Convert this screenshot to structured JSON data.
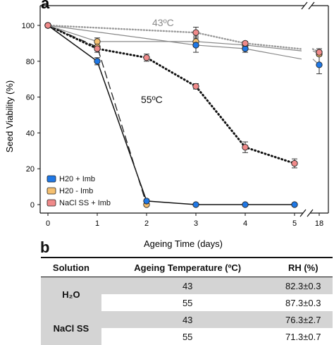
{
  "chart_data": {
    "type": "line",
    "panel_label": "a",
    "ylabel": "Seed Viability (%)",
    "xlabel": "Ageing Time (days)",
    "x_ticks": [
      "0",
      "1",
      "2",
      "3",
      "4",
      "5",
      "18"
    ],
    "y_ticks": [
      0,
      20,
      40,
      60,
      80,
      100
    ],
    "ylim": [
      0,
      105
    ],
    "axis_break": "between 5 and 18",
    "annotations": [
      "43ºC",
      "55ºC"
    ],
    "legend": {
      "placement": "bottom-left",
      "entries": [
        {
          "label": "H20 + Imb",
          "color": "#1f78e6"
        },
        {
          "label": "H20 - Imb",
          "color": "#f5c070"
        },
        {
          "label": "NaCl SS + Imb",
          "color": "#f08a8a"
        }
      ]
    },
    "series": [
      {
        "temp": "55",
        "treatment": "H20 + Imb",
        "color": "#1f78e6",
        "line": "solid",
        "x": [
          "0",
          "1",
          "2",
          "3",
          "4",
          "5"
        ],
        "y": [
          100,
          80,
          2,
          0,
          0,
          0
        ],
        "err": [
          1,
          2,
          1,
          0,
          0,
          0
        ]
      },
      {
        "temp": "55",
        "treatment": "H20 - Imb",
        "color": "#f5c070",
        "line": "dashed",
        "x": [
          "0",
          "1",
          "2"
        ],
        "y": [
          100,
          88,
          0
        ],
        "err": [
          1,
          2,
          0
        ]
      },
      {
        "temp": "55",
        "treatment": "NaCl SS + Imb",
        "color": "#f08a8a",
        "line": "dotted",
        "x": [
          "0",
          "1",
          "2",
          "3",
          "4",
          "5"
        ],
        "y": [
          100,
          87,
          82,
          66,
          32,
          23
        ],
        "err": [
          1,
          2,
          2,
          1.5,
          3,
          2.5
        ]
      },
      {
        "temp": "43",
        "treatment": "H20 + Imb",
        "color": "#1f78e6",
        "line": "solid-gray",
        "x": [
          "0",
          "3",
          "4",
          "18"
        ],
        "y": [
          100,
          89,
          87,
          78
        ],
        "err": [
          1,
          4,
          2,
          5
        ]
      },
      {
        "temp": "43",
        "treatment": "H20 - Imb",
        "color": "#f5c070",
        "line": "solid-gray",
        "x": [
          "0",
          "1",
          "3",
          "4",
          "18"
        ],
        "y": [
          100,
          91,
          91,
          89,
          84
        ],
        "err": [
          1,
          2,
          3,
          1,
          1
        ]
      },
      {
        "temp": "43",
        "treatment": "NaCl SS + Imb",
        "color": "#f08a8a",
        "line": "dotted-gray",
        "x": [
          "0",
          "3",
          "4",
          "18"
        ],
        "y": [
          100,
          96,
          90,
          85
        ],
        "err": [
          1,
          3,
          1,
          2
        ]
      }
    ]
  },
  "table": {
    "panel_label": "b",
    "headers": [
      "Solution",
      "Ageing Temperature (ºC)",
      "RH (%)"
    ],
    "rows": [
      {
        "solution": "H₂O",
        "temp": "43",
        "rh": "82.3±0.3"
      },
      {
        "solution": "",
        "temp": "55",
        "rh": "87.3±0.3"
      },
      {
        "solution": "NaCl SS",
        "temp": "43",
        "rh": "76.3±2.7"
      },
      {
        "solution": "",
        "temp": "55",
        "rh": "71.3±0.7"
      }
    ]
  }
}
